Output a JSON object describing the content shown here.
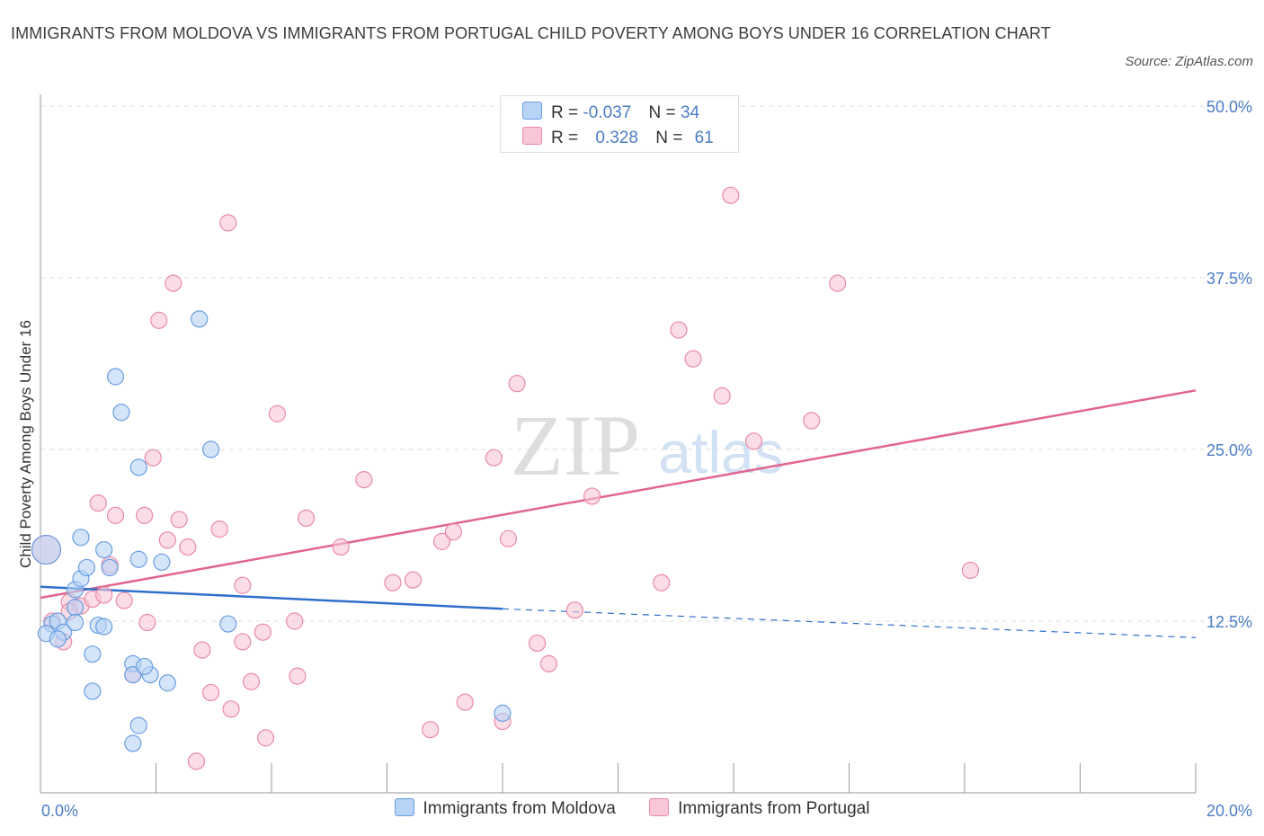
{
  "header": {
    "title": "IMMIGRANTS FROM MOLDOVA VS IMMIGRANTS FROM PORTUGAL CHILD POVERTY AMONG BOYS UNDER 16 CORRELATION CHART",
    "source": "Source: ZipAtlas.com"
  },
  "watermark": {
    "zip": "ZIP",
    "atlas": "atlas"
  },
  "legend_top": {
    "r_label": "R =",
    "n_label": "N =",
    "rows": [
      {
        "r": "-0.037",
        "n": "34"
      },
      {
        "r": "0.328",
        "n": "61"
      }
    ]
  },
  "colors": {
    "moldova_fill": "#b7d3f5",
    "moldova_stroke": "#6a9ee0",
    "moldova_line": "#2f6fcc",
    "portugal_fill": "#f8c6d6",
    "portugal_stroke": "#e98aa9",
    "portugal_line": "#e06590"
  },
  "chart_data": {
    "type": "scatter",
    "title": "IMMIGRANTS FROM MOLDOVA VS IMMIGRANTS FROM PORTUGAL CHILD POVERTY AMONG BOYS UNDER 16 CORRELATION CHART",
    "xlabel": "",
    "ylabel": "Child Poverty Among Boys Under 16",
    "xlim": [
      0,
      20
    ],
    "ylim": [
      0,
      50
    ],
    "x_tick_labels": [
      "0.0%",
      "20.0%"
    ],
    "y_ticks": [
      12.5,
      25.0,
      37.5,
      50.0
    ],
    "y_tick_labels": [
      "12.5%",
      "25.0%",
      "37.5%",
      "50.0%"
    ],
    "grid": true,
    "legend_placement": "bottom-center",
    "series": [
      {
        "name": "Immigrants from Moldova",
        "R": -0.037,
        "N": 34,
        "trend": {
          "x0": 0,
          "y0": 15.0,
          "x1": 8.0,
          "y1": 13.4,
          "dash_to_x": 20,
          "dash_to_y": 11.3
        },
        "points": [
          [
            0.1,
            17.7,
            16
          ],
          [
            0.2,
            12.3,
            9
          ],
          [
            0.1,
            11.6,
            9
          ],
          [
            0.3,
            12.5,
            9
          ],
          [
            0.4,
            11.7,
            9
          ],
          [
            0.3,
            11.2,
            9
          ],
          [
            0.6,
            14.8,
            9
          ],
          [
            0.6,
            13.5,
            9
          ],
          [
            0.6,
            12.4,
            9
          ],
          [
            0.7,
            18.6,
            9
          ],
          [
            0.7,
            15.6,
            9
          ],
          [
            0.8,
            16.4,
            9
          ],
          [
            0.9,
            7.4,
            9
          ],
          [
            0.9,
            10.1,
            9
          ],
          [
            1.0,
            12.2,
            9
          ],
          [
            1.1,
            12.1,
            9
          ],
          [
            1.1,
            17.7,
            9
          ],
          [
            1.2,
            16.4,
            9
          ],
          [
            1.3,
            30.3,
            9
          ],
          [
            1.4,
            27.7,
            9
          ],
          [
            1.6,
            9.4,
            9
          ],
          [
            1.6,
            8.6,
            9
          ],
          [
            1.6,
            3.6,
            9
          ],
          [
            1.7,
            17.0,
            9
          ],
          [
            1.7,
            4.9,
            9
          ],
          [
            1.7,
            23.7,
            9
          ],
          [
            1.9,
            8.6,
            9
          ],
          [
            2.1,
            16.8,
            9
          ],
          [
            2.2,
            8.0,
            9
          ],
          [
            2.75,
            34.5,
            9
          ],
          [
            2.95,
            25.0,
            9
          ],
          [
            3.25,
            12.3,
            9
          ],
          [
            8.0,
            5.8,
            9
          ],
          [
            1.8,
            9.2,
            9
          ]
        ]
      },
      {
        "name": "Immigrants from Portugal",
        "R": 0.328,
        "N": 61,
        "trend": {
          "x0": 0,
          "y0": 14.2,
          "x1": 20,
          "y1": 29.3
        },
        "points": [
          [
            0.1,
            17.7,
            16
          ],
          [
            0.2,
            12.5,
            9
          ],
          [
            0.5,
            13.9,
            9
          ],
          [
            0.4,
            11.0,
            9
          ],
          [
            0.7,
            13.6,
            9
          ],
          [
            0.5,
            13.2,
            9
          ],
          [
            0.9,
            14.1,
            9
          ],
          [
            1.0,
            21.1,
            9
          ],
          [
            1.1,
            14.4,
            9
          ],
          [
            1.2,
            16.6,
            9
          ],
          [
            1.3,
            20.2,
            9
          ],
          [
            1.45,
            14.0,
            9
          ],
          [
            1.6,
            8.6,
            9
          ],
          [
            1.8,
            20.2,
            9
          ],
          [
            1.85,
            12.4,
            9
          ],
          [
            1.95,
            24.4,
            9
          ],
          [
            2.05,
            34.4,
            9
          ],
          [
            2.2,
            18.4,
            9
          ],
          [
            2.3,
            37.1,
            9
          ],
          [
            2.4,
            19.9,
            9
          ],
          [
            2.55,
            17.9,
            9
          ],
          [
            2.7,
            2.3,
            9
          ],
          [
            2.8,
            10.4,
            9
          ],
          [
            2.95,
            7.3,
            9
          ],
          [
            3.1,
            19.2,
            9
          ],
          [
            3.25,
            41.5,
            9
          ],
          [
            3.3,
            6.1,
            9
          ],
          [
            3.5,
            11.0,
            9
          ],
          [
            3.5,
            15.1,
            9
          ],
          [
            3.65,
            8.1,
            9
          ],
          [
            3.85,
            11.7,
            9
          ],
          [
            3.9,
            4.0,
            9
          ],
          [
            4.1,
            27.6,
            9
          ],
          [
            4.4,
            12.5,
            9
          ],
          [
            4.45,
            8.5,
            9
          ],
          [
            4.6,
            20.0,
            9
          ],
          [
            5.2,
            17.9,
            9
          ],
          [
            5.6,
            22.8,
            9
          ],
          [
            6.1,
            15.3,
            9
          ],
          [
            6.45,
            15.5,
            9
          ],
          [
            6.75,
            4.6,
            9
          ],
          [
            6.95,
            18.3,
            9
          ],
          [
            7.15,
            19.0,
            9
          ],
          [
            7.35,
            6.6,
            9
          ],
          [
            7.85,
            24.4,
            9
          ],
          [
            8.0,
            5.2,
            9
          ],
          [
            8.1,
            18.5,
            9
          ],
          [
            8.25,
            29.8,
            9
          ],
          [
            8.6,
            10.9,
            9
          ],
          [
            8.8,
            9.4,
            9
          ],
          [
            9.25,
            13.3,
            9
          ],
          [
            9.55,
            21.6,
            9
          ],
          [
            10.75,
            15.3,
            9
          ],
          [
            11.05,
            33.7,
            9
          ],
          [
            11.3,
            31.6,
            9
          ],
          [
            11.8,
            28.9,
            9
          ],
          [
            11.95,
            43.5,
            9
          ],
          [
            12.35,
            25.6,
            9
          ],
          [
            13.35,
            27.1,
            9
          ],
          [
            13.8,
            37.1,
            9
          ],
          [
            16.1,
            16.2,
            9
          ]
        ]
      }
    ]
  }
}
